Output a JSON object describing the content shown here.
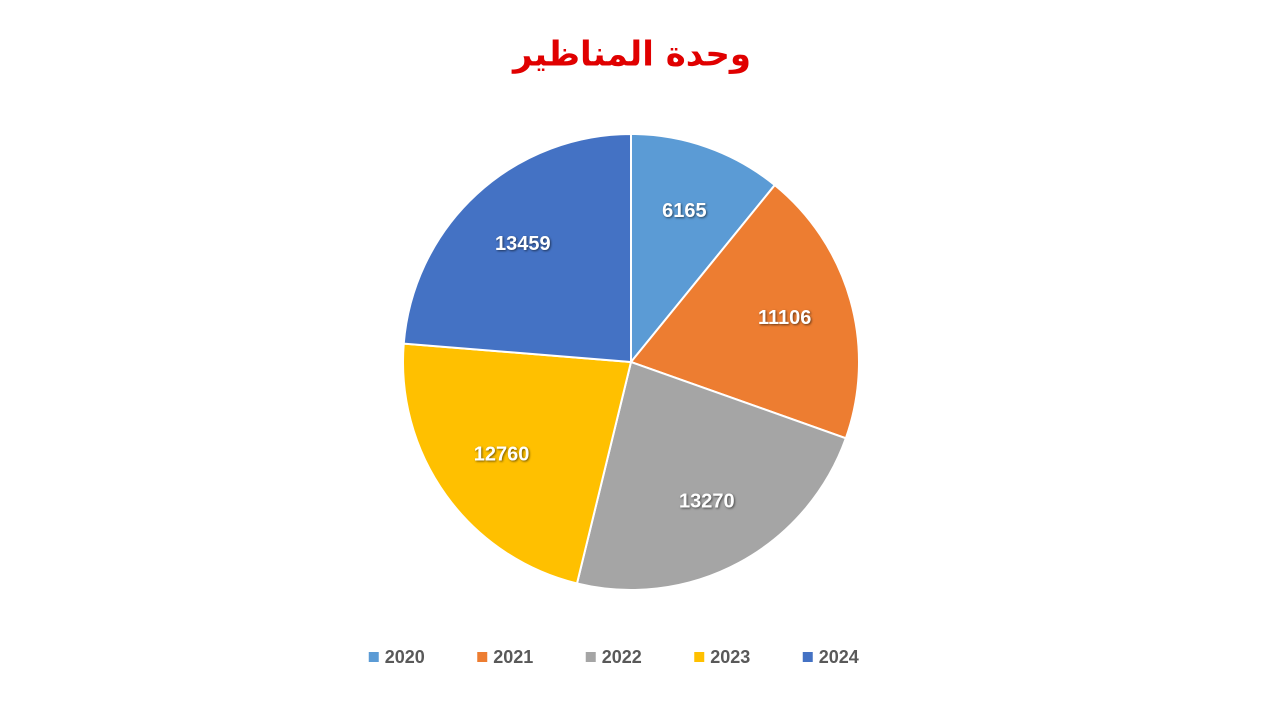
{
  "chart_data": {
    "type": "pie",
    "title": "وحدة المناظير",
    "categories": [
      "2020",
      "2021",
      "2022",
      "2023",
      "2024"
    ],
    "values": [
      6165,
      11106,
      13270,
      12760,
      13459
    ],
    "colors": [
      "#5b9bd5",
      "#ed7d31",
      "#a5a5a5",
      "#ffc000",
      "#4472c4"
    ],
    "legend": "bottom"
  }
}
